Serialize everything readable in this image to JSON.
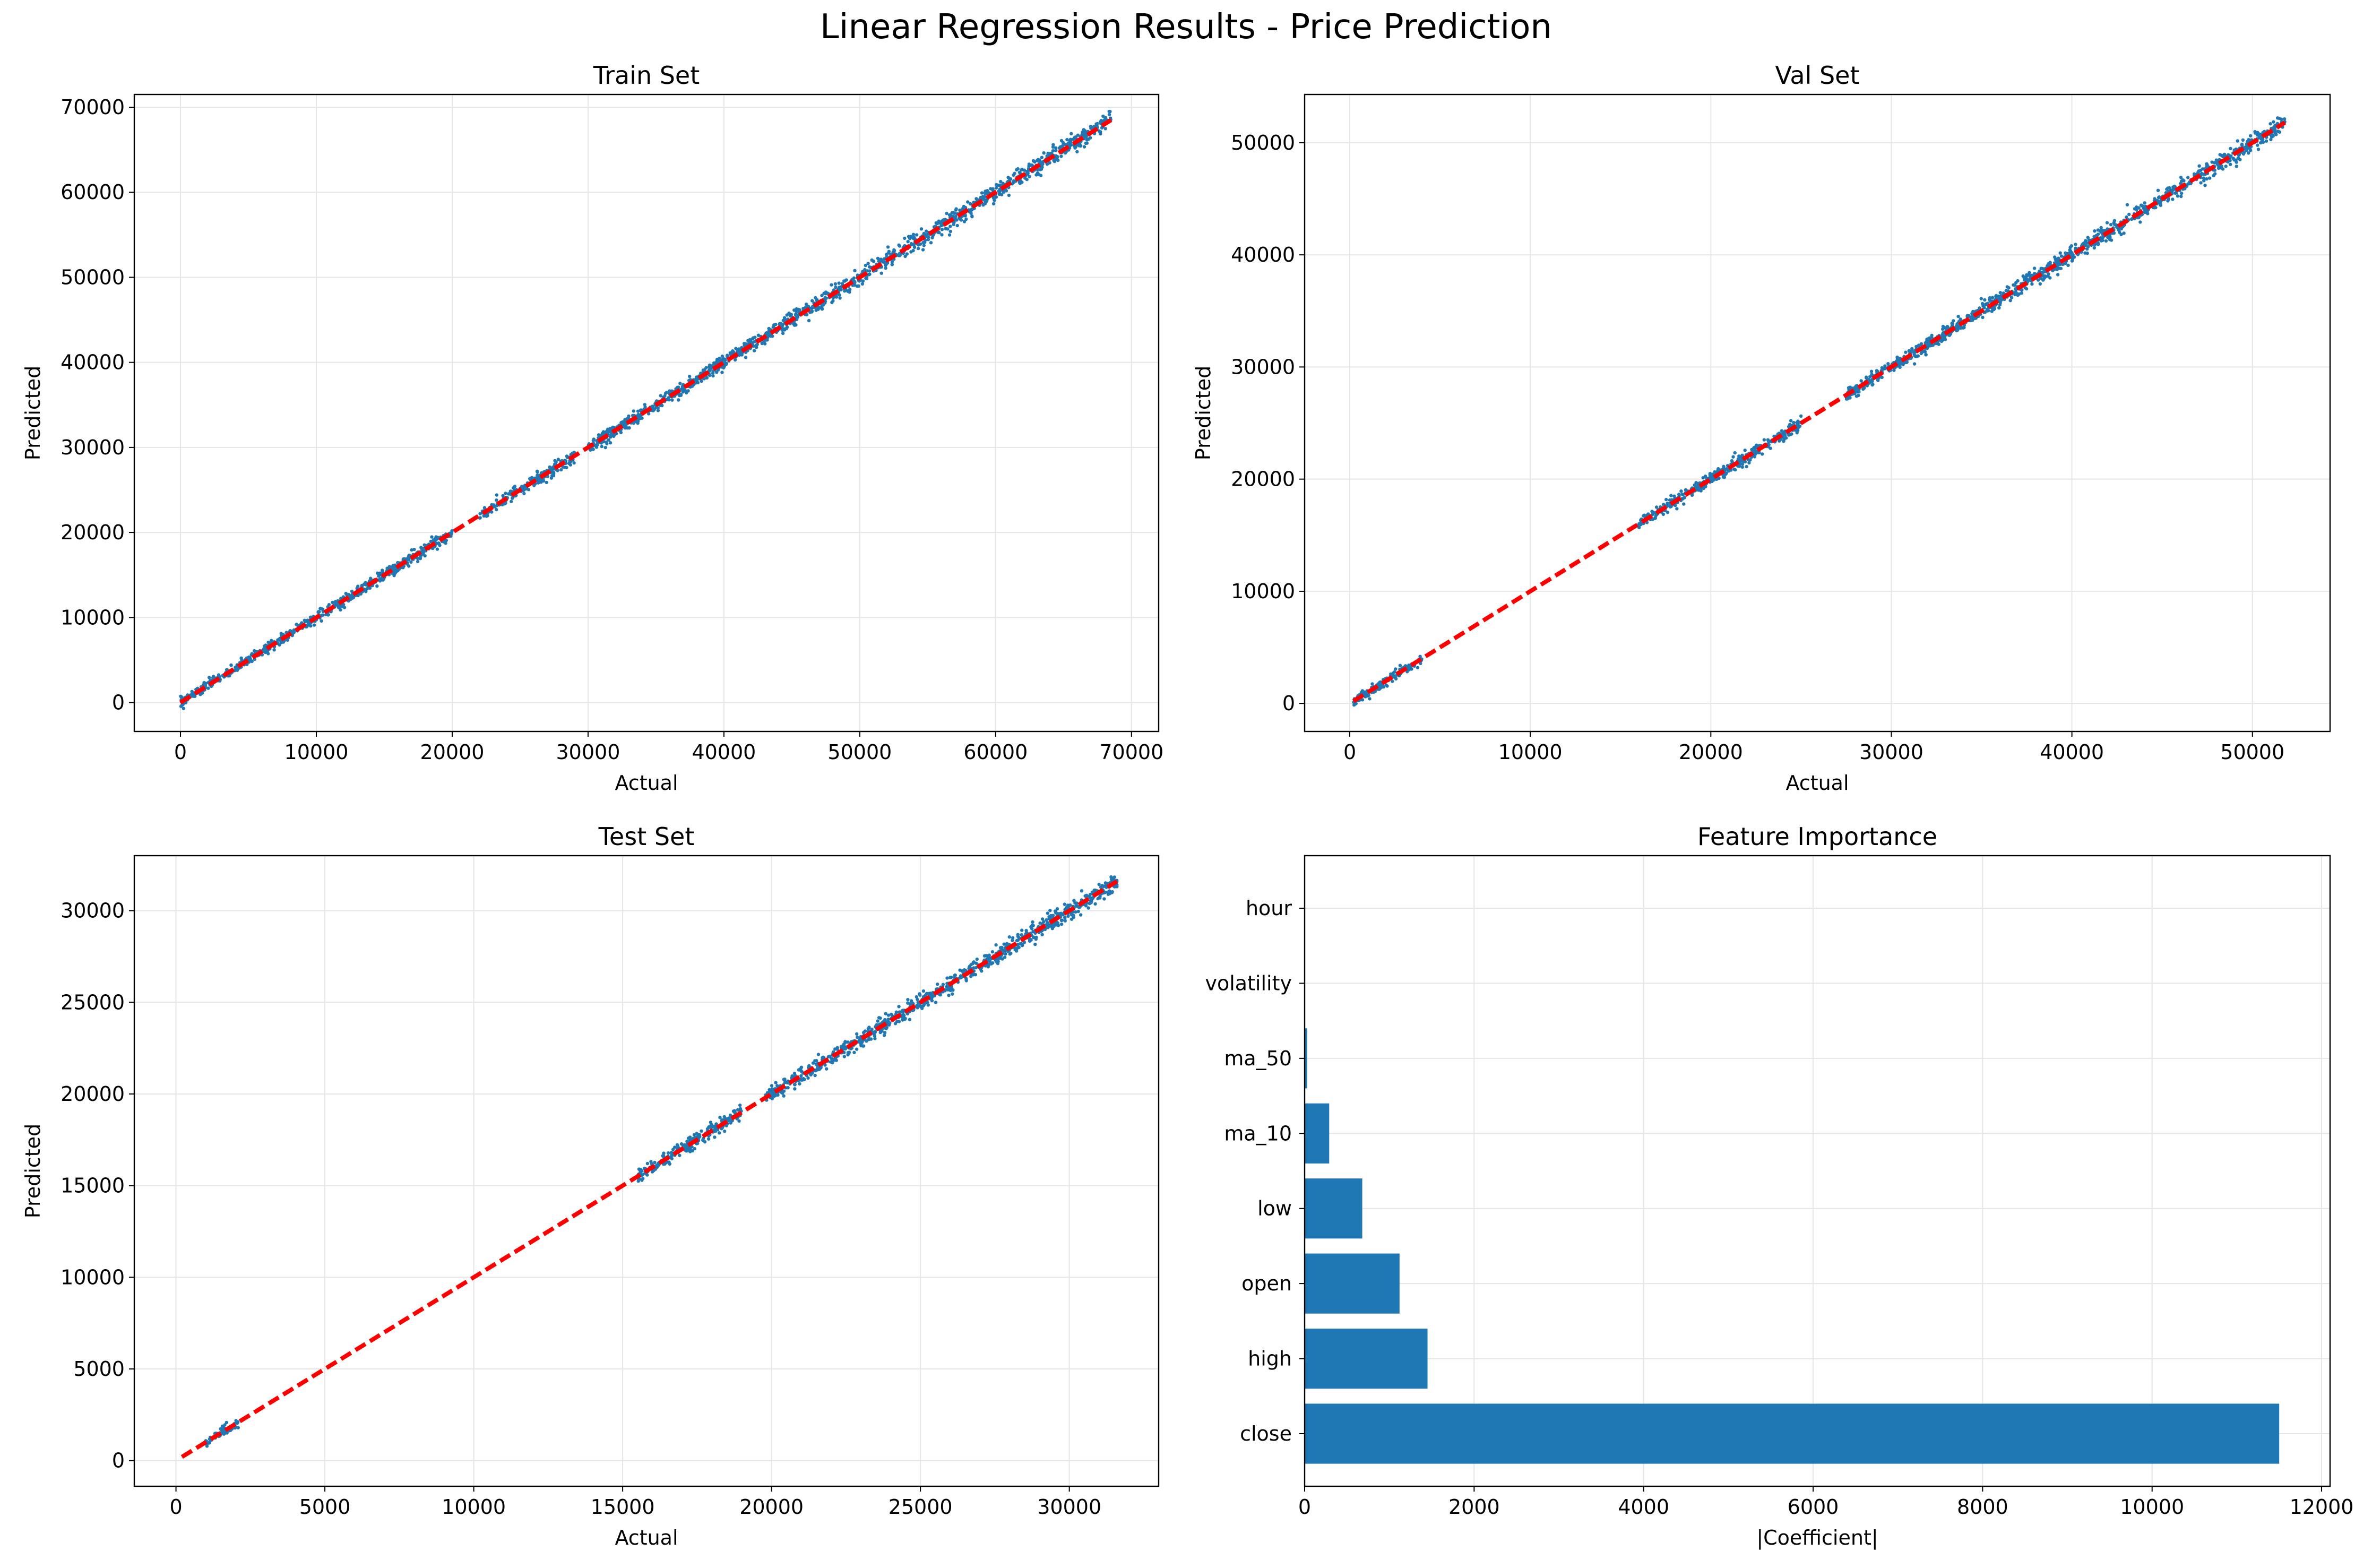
{
  "figure": {
    "suptitle": "Linear Regression Results - Price Prediction"
  },
  "colors": {
    "points": "#1f77b4",
    "ideal_line": "#ff0000",
    "bars": "#1f77b4",
    "grid": "#e6e6e6"
  },
  "chart_data": [
    {
      "type": "scatter",
      "title": "Train Set",
      "xlabel": "Actual",
      "ylabel": "Predicted",
      "xlim": [
        -3400,
        72000
      ],
      "ylim": [
        -3400,
        71500
      ],
      "xticks": [
        0,
        10000,
        20000,
        30000,
        40000,
        50000,
        60000,
        70000
      ],
      "yticks": [
        0,
        10000,
        20000,
        30000,
        40000,
        50000,
        60000,
        70000
      ],
      "grid": true,
      "point_ranges": [
        [
          0,
          20000
        ],
        [
          22000,
          29000
        ],
        [
          30000,
          68500
        ]
      ],
      "ideal_line": {
        "from": 0,
        "to": 68500
      }
    },
    {
      "type": "scatter",
      "title": "Val Set",
      "xlabel": "Actual",
      "ylabel": "Predicted",
      "xlim": [
        -2500,
        54300
      ],
      "ylim": [
        -2500,
        54300
      ],
      "xticks": [
        0,
        10000,
        20000,
        30000,
        40000,
        50000
      ],
      "yticks": [
        0,
        10000,
        20000,
        30000,
        40000,
        50000
      ],
      "grid": true,
      "point_ranges": [
        [
          200,
          4000
        ],
        [
          16000,
          25000
        ],
        [
          27500,
          51800
        ]
      ],
      "ideal_line": {
        "from": 200,
        "to": 51800
      }
    },
    {
      "type": "scatter",
      "title": "Test Set",
      "xlabel": "Actual",
      "ylabel": "Predicted",
      "xlim": [
        -1400,
        33000
      ],
      "ylim": [
        -1400,
        33000
      ],
      "xticks": [
        0,
        5000,
        10000,
        15000,
        20000,
        25000,
        30000
      ],
      "yticks": [
        0,
        5000,
        10000,
        15000,
        20000,
        25000,
        30000
      ],
      "grid": true,
      "point_ranges": [
        [
          1000,
          2100
        ],
        [
          15500,
          19000
        ],
        [
          19800,
          31600
        ]
      ],
      "ideal_line": {
        "from": 200,
        "to": 31600
      }
    },
    {
      "type": "bar",
      "orientation": "horizontal",
      "title": "Feature Importance",
      "xlabel": "|Coefficient|",
      "ylabel": "",
      "xlim": [
        0,
        12100
      ],
      "xticks": [
        0,
        2000,
        4000,
        6000,
        8000,
        10000,
        12000
      ],
      "grid": true,
      "categories": [
        "close",
        "high",
        "open",
        "low",
        "ma_10",
        "ma_50",
        "volatility",
        "hour"
      ],
      "values": [
        11500,
        1450,
        1120,
        680,
        290,
        30,
        3,
        1
      ]
    }
  ]
}
